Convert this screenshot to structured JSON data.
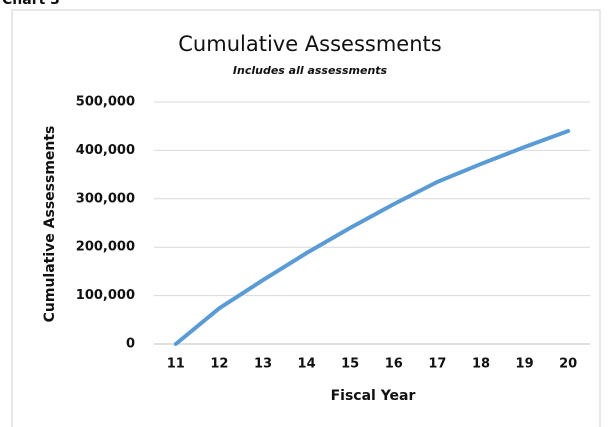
{
  "chart_data": {
    "type": "line",
    "label": "Chart 3",
    "title": "Cumulative Assessments",
    "subtitle": "Includes all assessments",
    "x_label": "Fiscal Year",
    "y_label": "Cumulative Assessments",
    "categories": [
      "11",
      "12",
      "13",
      "14",
      "15",
      "16",
      "17",
      "18",
      "19",
      "20"
    ],
    "series": [
      {
        "name": "Cumulative Assessments",
        "color": "#5b9bd5",
        "values": [
          0,
          74000,
          132000,
          188000,
          240000,
          289000,
          335000,
          372000,
          407000,
          440000
        ]
      }
    ],
    "ylim": [
      0,
      500000
    ],
    "yticks": [
      0,
      {
        "value": 100000,
        "label": "100,000"
      },
      {
        "value": 200000,
        "label": "200,000"
      },
      {
        "value": 300000,
        "label": "300,000"
      },
      {
        "value": 400000,
        "label": "400,000"
      },
      {
        "value": 500000,
        "label": "500,000"
      }
    ],
    "grid": true
  }
}
